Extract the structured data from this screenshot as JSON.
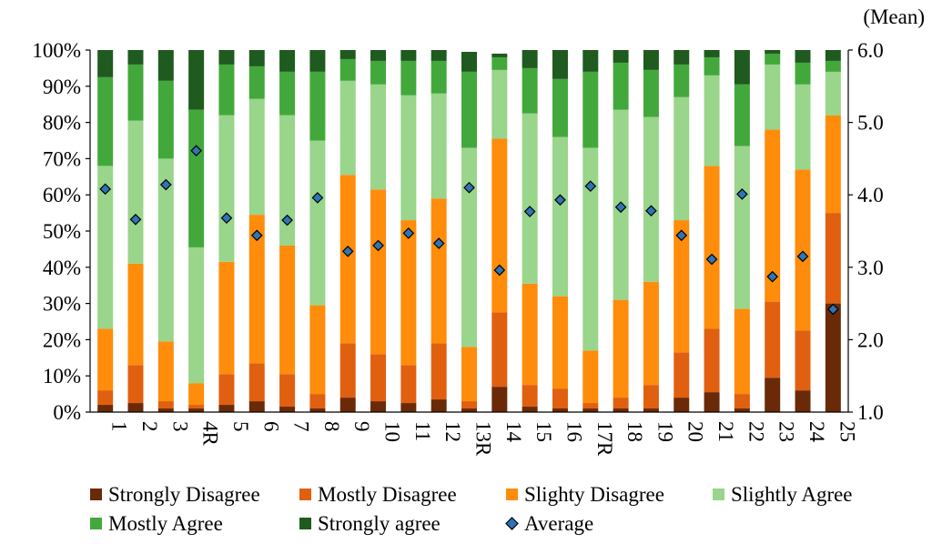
{
  "chart_data": {
    "type": "bar",
    "stacked": true,
    "percent_stacked": true,
    "categories": [
      "1",
      "2",
      "3",
      "4R",
      "5",
      "6",
      "7",
      "8",
      "9",
      "10",
      "11",
      "12",
      "13R",
      "14",
      "15",
      "16",
      "17R",
      "18",
      "19",
      "20",
      "21",
      "22",
      "23",
      "24",
      "25"
    ],
    "series": [
      {
        "name": "Strongly Disagree",
        "color": "#6b2a07",
        "values": [
          2,
          2.5,
          1,
          1,
          2,
          3,
          1.5,
          1,
          4,
          3,
          2.5,
          3.5,
          1,
          7,
          1.5,
          1,
          1,
          1,
          1,
          4,
          5.5,
          1,
          9.5,
          6,
          30
        ]
      },
      {
        "name": "Mostly Disagree",
        "color": "#e06010",
        "values": [
          4,
          10.5,
          2,
          1,
          8.5,
          10.5,
          9,
          4,
          15,
          13,
          10.5,
          15.5,
          2,
          20.5,
          6,
          5.5,
          1.5,
          3,
          6.5,
          12.5,
          17.5,
          4,
          21,
          16.5,
          25
        ]
      },
      {
        "name": "Slighty Disagree",
        "color": "#ff8c0a",
        "values": [
          17,
          28,
          16.5,
          6,
          31,
          41,
          35.5,
          24.5,
          46.5,
          45.5,
          40,
          40,
          15,
          48,
          28,
          25.5,
          14.5,
          27,
          28.5,
          36.5,
          45,
          23.5,
          47.5,
          44.5,
          27
        ]
      },
      {
        "name": "Slightly Agree",
        "color": "#99d58a",
        "values": [
          45,
          39.5,
          50.5,
          37.5,
          40.5,
          32,
          36,
          45.5,
          26,
          29,
          34.5,
          29,
          55,
          19,
          47,
          44,
          56,
          52.5,
          45.5,
          34,
          25,
          45,
          18,
          23.5,
          12
        ]
      },
      {
        "name": "Mostly Agree",
        "color": "#43a83b",
        "values": [
          24.5,
          15.5,
          21.5,
          38,
          14,
          9,
          12,
          19,
          6,
          6.5,
          9.5,
          9,
          21,
          3.5,
          12.5,
          16,
          21,
          13,
          13,
          9,
          5,
          17,
          3,
          6,
          3
        ]
      },
      {
        "name": "Strongly agree",
        "color": "#1f5a1f",
        "values": [
          7.5,
          4,
          8.5,
          16.5,
          4,
          4.5,
          6,
          6,
          2.5,
          3,
          3,
          3,
          5.5,
          1,
          5,
          8,
          6,
          3.5,
          5.5,
          4,
          2,
          9.5,
          1,
          3.5,
          3
        ]
      }
    ],
    "average": {
      "name": "Average",
      "color": "#2e75b6",
      "values": [
        4.08,
        3.66,
        4.14,
        4.61,
        3.68,
        3.44,
        3.65,
        3.96,
        3.22,
        3.3,
        3.47,
        3.33,
        4.1,
        2.96,
        3.77,
        3.93,
        4.12,
        3.83,
        3.78,
        3.44,
        3.11,
        4.01,
        2.87,
        3.15,
        2.42
      ]
    },
    "y_left": {
      "min": 0,
      "max": 100,
      "step": 10,
      "format": "percent"
    },
    "y_right": {
      "min": 1.0,
      "max": 6.0,
      "step": 1.0,
      "label": "(Mean)"
    },
    "title": "",
    "xlabel": "",
    "ylabel": "",
    "legend_position": "bottom",
    "grid": false
  }
}
